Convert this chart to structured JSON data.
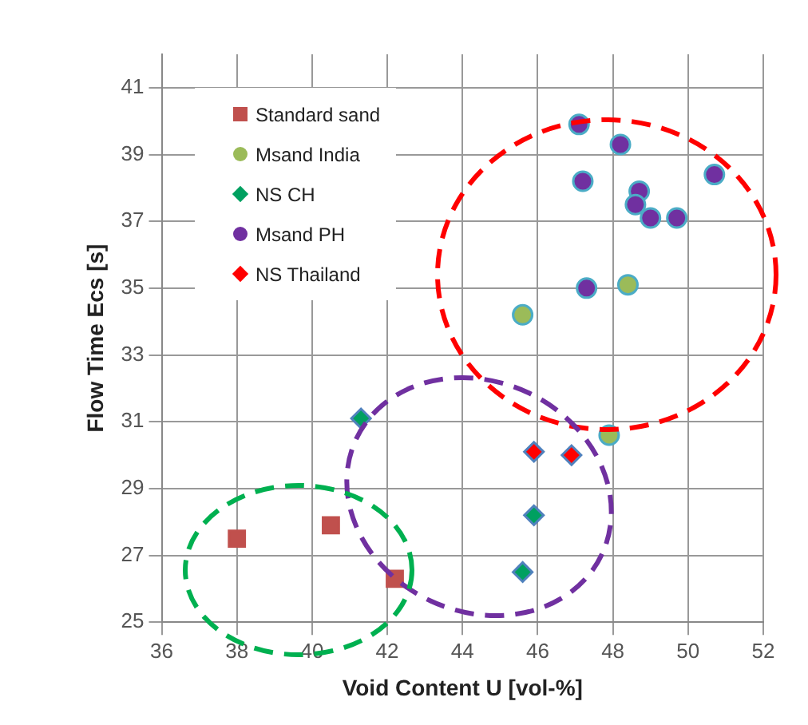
{
  "chart_data": {
    "type": "scatter",
    "xlabel": "Void Content U [vol-%]",
    "ylabel": "Flow Time Ecs [s]",
    "xlim": [
      36,
      52
    ],
    "xticks": [
      36,
      38,
      40,
      42,
      44,
      46,
      48,
      50,
      52
    ],
    "ylim": [
      25,
      42
    ],
    "yticks": [
      25,
      27,
      29,
      31,
      33,
      35,
      37,
      39,
      41
    ],
    "grid": true,
    "legend": "top left",
    "series": [
      {
        "name": "Standard sand",
        "color": "#c0504d",
        "marker": "square",
        "x": [
          38,
          40.5,
          42.2
        ],
        "values": [
          27.5,
          27.9,
          26.3
        ]
      },
      {
        "name": "Msand India",
        "color": "#9bbb59",
        "marker": "circle",
        "x": [
          45.6,
          48.4,
          47.9
        ],
        "values": [
          34.2,
          35.1,
          30.6
        ]
      },
      {
        "name": "NS CH",
        "color": "#00a060",
        "marker": "diamond",
        "x": [
          41.3,
          45.9,
          45.6
        ],
        "values": [
          31.1,
          28.2,
          26.5
        ]
      },
      {
        "name": "Msand PH",
        "color": "#7030a0",
        "marker": "circle",
        "x": [
          47.1,
          48.2,
          47.2,
          48.7,
          48.6,
          49,
          49.7,
          47.3,
          50.7
        ],
        "values": [
          39.9,
          39.3,
          38.2,
          37.9,
          37.5,
          37.1,
          37.1,
          35,
          38.4
        ]
      },
      {
        "name": "NS Thailand",
        "color": "#ff0000",
        "marker": "diamond",
        "x": [
          45.9,
          46.9
        ],
        "values": [
          30.1,
          30
        ]
      }
    ]
  }
}
